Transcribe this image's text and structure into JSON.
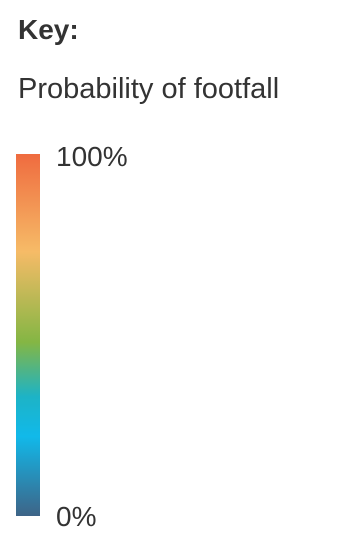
{
  "legend": {
    "key_label": "Key:",
    "title": "Probability of footfall",
    "max_label": "100%",
    "min_label": "0%",
    "colors": {
      "top": "#ef6b3f",
      "upper": "#f6bb67",
      "middle": "#84b644",
      "lower": "#1db3c6",
      "low": "#11b9ea",
      "bottom": "#3e6487"
    }
  }
}
